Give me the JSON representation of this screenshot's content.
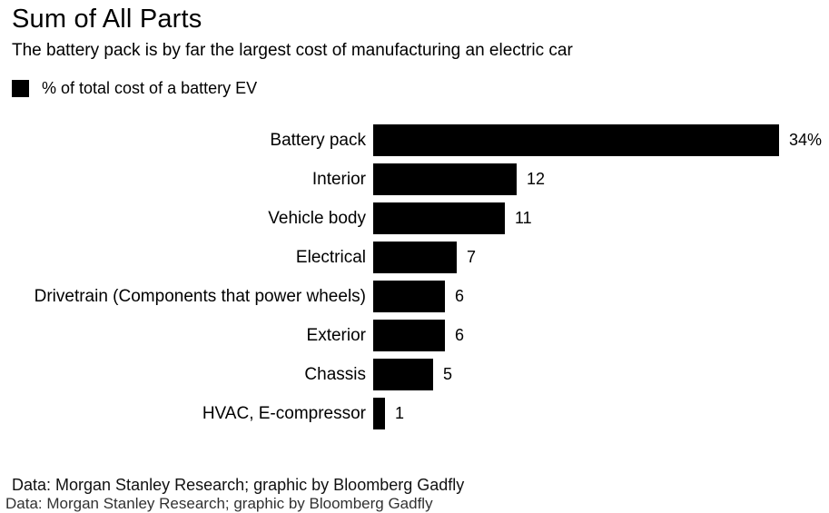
{
  "header": {
    "title": "Sum of All Parts",
    "subtitle": "The battery pack is by far the largest cost of manufacturing an electric car"
  },
  "legend": {
    "label": "% of total cost of a battery EV",
    "swatch_color": "#000000"
  },
  "chart_data": {
    "type": "bar",
    "orientation": "horizontal",
    "title": "Sum of All Parts",
    "subtitle": "The battery pack is by far the largest cost of manufacturing an electric car",
    "series_name": "% of total cost of a battery EV",
    "categories": [
      "Battery pack",
      "Interior",
      "Vehicle body",
      "Electrical",
      "Drivetrain (Components that power wheels)",
      "Exterior",
      "Chassis",
      "HVAC, E-compressor"
    ],
    "values": [
      34,
      12,
      11,
      7,
      6,
      6,
      5,
      1
    ],
    "value_labels": [
      "34%",
      "12",
      "11",
      "7",
      "6",
      "6",
      "5",
      "1"
    ],
    "xlabel": "",
    "ylabel": "",
    "xlim": [
      0,
      34
    ],
    "grid": false,
    "bar_color": "#000000",
    "legend_position": "top-left"
  },
  "footer": {
    "source": "Data: Morgan Stanley Research; graphic by Bloomberg Gadfly"
  }
}
